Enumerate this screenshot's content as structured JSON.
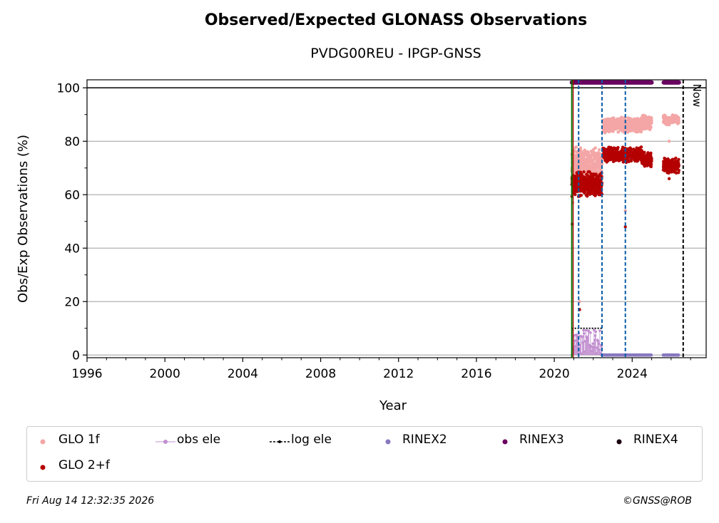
{
  "chart_data": {
    "type": "scatter",
    "title": "Observed/Expected GLONASS Observations",
    "subtitle": "PVDG00REU - IPGP-GNSS",
    "xlabel": "Year",
    "ylabel": "Obs/Exp Observations (%)",
    "xlim": [
      1996,
      2027.8
    ],
    "ylim": [
      -1,
      103
    ],
    "xticks": [
      "1996",
      "2000",
      "2004",
      "2008",
      "2012",
      "2016",
      "2020",
      "2024"
    ],
    "yticks": [
      "0",
      "20",
      "40",
      "60",
      "80",
      "100"
    ],
    "grid": "horizontal",
    "reference_line_y": 100,
    "now_label": "Now",
    "now_x": 2026.62,
    "start_line_x": 2020.9,
    "event_lines_x": [
      2021.25,
      2022.45,
      2023.65
    ],
    "series": [
      {
        "name": "GLO 1f",
        "color": "#f4a6a6",
        "segments": [
          {
            "x0": 2020.9,
            "x1": 2022.45,
            "y": 71,
            "spread": 7
          },
          {
            "x0": 2022.5,
            "x1": 2024.5,
            "y": 86,
            "spread": 3
          },
          {
            "x0": 2024.5,
            "x1": 2025.0,
            "y": 87,
            "spread": 3
          },
          {
            "x0": 2025.6,
            "x1": 2026.4,
            "y": 88,
            "spread": 2
          }
        ],
        "outliers": [
          [
            2020.95,
            57
          ],
          [
            2021.3,
            20
          ],
          [
            2023.65,
            54
          ],
          [
            2025.9,
            80
          ]
        ]
      },
      {
        "name": "GLO 2+f",
        "color": "#b40000",
        "segments": [
          {
            "x0": 2020.9,
            "x1": 2022.45,
            "y": 64,
            "spread": 5
          },
          {
            "x0": 2022.5,
            "x1": 2024.5,
            "y": 75,
            "spread": 3
          },
          {
            "x0": 2024.5,
            "x1": 2025.0,
            "y": 73,
            "spread": 3
          },
          {
            "x0": 2025.6,
            "x1": 2026.4,
            "y": 71,
            "spread": 3
          }
        ],
        "outliers": [
          [
            2020.92,
            49
          ],
          [
            2021.3,
            17
          ],
          [
            2023.65,
            48
          ],
          [
            2025.9,
            66
          ]
        ]
      },
      {
        "name": "obs ele",
        "color": "#c28fd0",
        "x0": 2020.9,
        "x1": 2022.45,
        "y_low": 0,
        "y_high": 10
      },
      {
        "name": "log ele",
        "color": "#000000",
        "x0": 2020.9,
        "x1": 2022.45,
        "y": 10
      },
      {
        "name": "RINEX2",
        "color": "#8878c0",
        "x0": 2022.45,
        "x1": 2026.4,
        "y": 0
      },
      {
        "name": "RINEX3",
        "color": "#6a0060",
        "x0": 2020.9,
        "x1": 2026.4,
        "y": 102,
        "gap": [
          2025.0,
          2025.6
        ]
      },
      {
        "name": "RINEX4",
        "color": "#1a0010",
        "x0": 2026.4,
        "x1": 2026.4,
        "y": 102
      }
    ],
    "legend": [
      "GLO 1f",
      "obs ele",
      "log ele",
      "RINEX2",
      "RINEX3",
      "RINEX4",
      "GLO 2+f"
    ],
    "legend_placement": "bottom"
  },
  "footer": {
    "timestamp": "Fri Aug 14 12:32:35 2026",
    "credit": "©GNSS@ROB"
  }
}
